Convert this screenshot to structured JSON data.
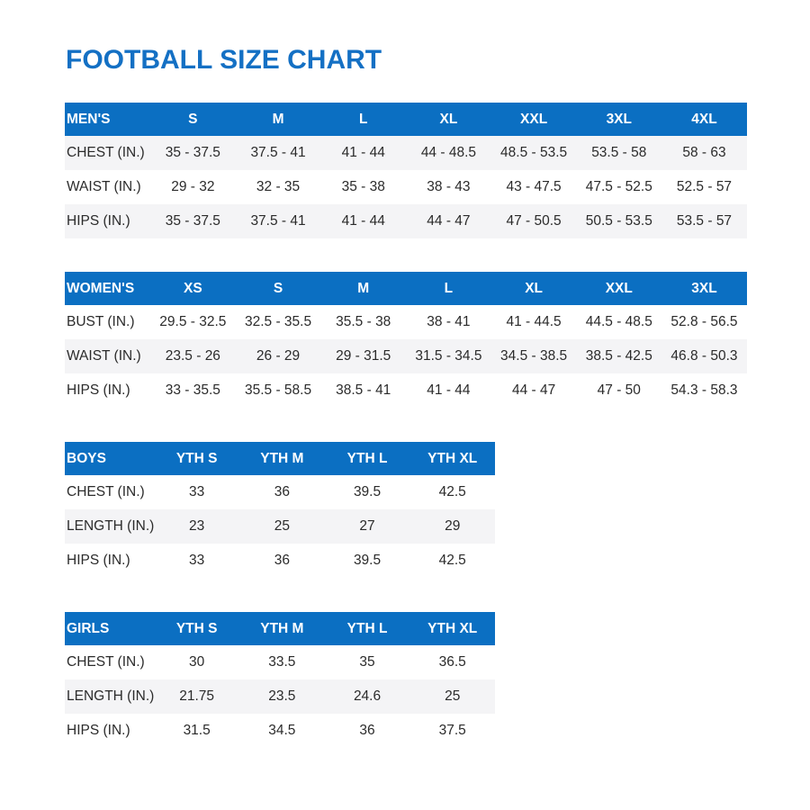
{
  "title": "FOOTBALL SIZE CHART",
  "colors": {
    "header": "#0b6fc2",
    "title": "#1470c4",
    "stripe": "#f4f4f6"
  },
  "tables": [
    {
      "header": [
        "MEN'S",
        "S",
        "M",
        "L",
        "XL",
        "XXL",
        "3XL",
        "4XL"
      ],
      "rows": [
        [
          "CHEST (IN.)",
          "35 - 37.5",
          "37.5 - 41",
          "41 - 44",
          "44 - 48.5",
          "48.5 - 53.5",
          "53.5 - 58",
          "58 - 63"
        ],
        [
          "WAIST (IN.)",
          "29 - 32",
          "32 - 35",
          "35 - 38",
          "38 - 43",
          "43 - 47.5",
          "47.5 - 52.5",
          "52.5 - 57"
        ],
        [
          "HIPS (IN.)",
          "35 - 37.5",
          "37.5 - 41",
          "41 - 44",
          "44 - 47",
          "47 - 50.5",
          "50.5 - 53.5",
          "53.5 - 57"
        ]
      ]
    },
    {
      "header": [
        "WOMEN'S",
        "XS",
        "S",
        "M",
        "L",
        "XL",
        "XXL",
        "3XL"
      ],
      "rows": [
        [
          "BUST (IN.)",
          "29.5 - 32.5",
          "32.5 - 35.5",
          "35.5 - 38",
          "38 - 41",
          "41 - 44.5",
          "44.5 - 48.5",
          "52.8 - 56.5"
        ],
        [
          "WAIST (IN.)",
          "23.5 - 26",
          "26 - 29",
          "29 - 31.5",
          "31.5 - 34.5",
          "34.5 - 38.5",
          "38.5 - 42.5",
          "46.8 - 50.3"
        ],
        [
          "HIPS (IN.)",
          "33 - 35.5",
          "35.5 - 58.5",
          "38.5 - 41",
          "41 - 44",
          "44 - 47",
          "47 - 50",
          "54.3 - 58.3"
        ]
      ]
    },
    {
      "header": [
        "BOYS",
        "YTH S",
        "YTH M",
        "YTH L",
        "YTH XL"
      ],
      "rows": [
        [
          "CHEST (IN.)",
          "33",
          "36",
          "39.5",
          "42.5"
        ],
        [
          "LENGTH (IN.)",
          "23",
          "25",
          "27",
          "29"
        ],
        [
          "HIPS (IN.)",
          "33",
          "36",
          "39.5",
          "42.5"
        ]
      ]
    },
    {
      "header": [
        "GIRLS",
        "YTH S",
        "YTH M",
        "YTH L",
        "YTH XL"
      ],
      "rows": [
        [
          "CHEST (IN.)",
          "30",
          "33.5",
          "35",
          "36.5"
        ],
        [
          "LENGTH (IN.)",
          "21.75",
          "23.5",
          "24.6",
          "25"
        ],
        [
          "HIPS (IN.)",
          "31.5",
          "34.5",
          "36",
          "37.5"
        ]
      ]
    }
  ]
}
